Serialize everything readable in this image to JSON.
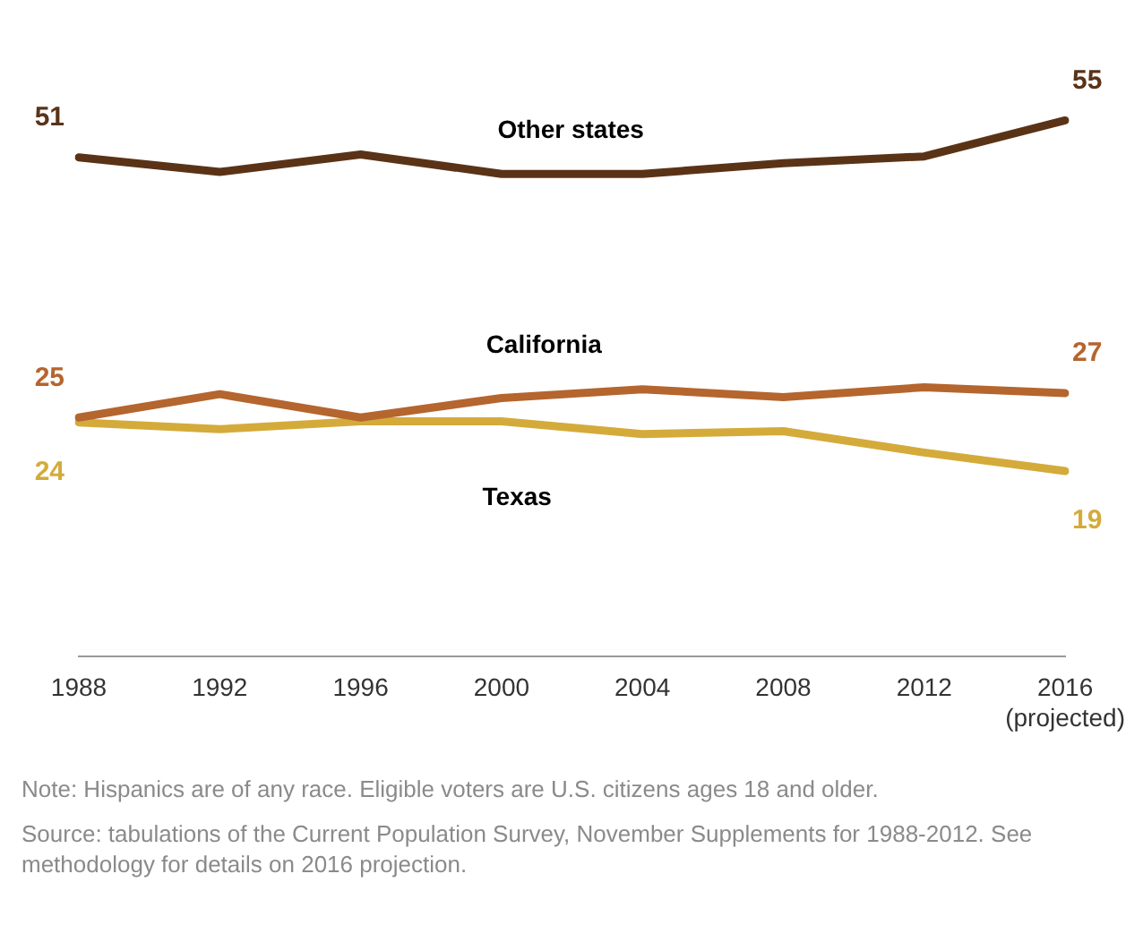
{
  "chart_data": {
    "type": "line",
    "categories": [
      "1988",
      "1992",
      "1996",
      "2000",
      "2004",
      "2008",
      "2012",
      "2016\n(projected)"
    ],
    "series": [
      {
        "name": "Other states",
        "color": "#5a3317",
        "values": [
          51.2,
          49.7,
          51.5,
          49.5,
          49.5,
          50.6,
          51.3,
          55
        ],
        "value_labels": [
          "51",
          null,
          null,
          null,
          null,
          null,
          null,
          "55"
        ]
      },
      {
        "name": "California",
        "color": "#b5652e",
        "values": [
          24.5,
          26.9,
          24.5,
          26.5,
          27.4,
          26.6,
          27.6,
          27
        ],
        "value_labels": [
          "25",
          null,
          null,
          null,
          null,
          null,
          null,
          "27"
        ]
      },
      {
        "name": "Texas",
        "color": "#d4ab3a",
        "values": [
          24,
          23.3,
          24.1,
          24.1,
          22.8,
          23.1,
          20.9,
          19
        ],
        "value_labels": [
          "24",
          null,
          null,
          null,
          null,
          null,
          null,
          "19"
        ]
      }
    ],
    "tick_labels": "x",
    "grid": false,
    "legend": false,
    "marker": "none",
    "line_style": "solid",
    "annotations": [
      "Note: Hispanics are of any race. Eligible voters are U.S. citizens ages 18 and older.",
      "Source: tabulations of the Current Population Survey, November Supplements for 1988-2012. See methodology for details on 2016 projection."
    ]
  }
}
